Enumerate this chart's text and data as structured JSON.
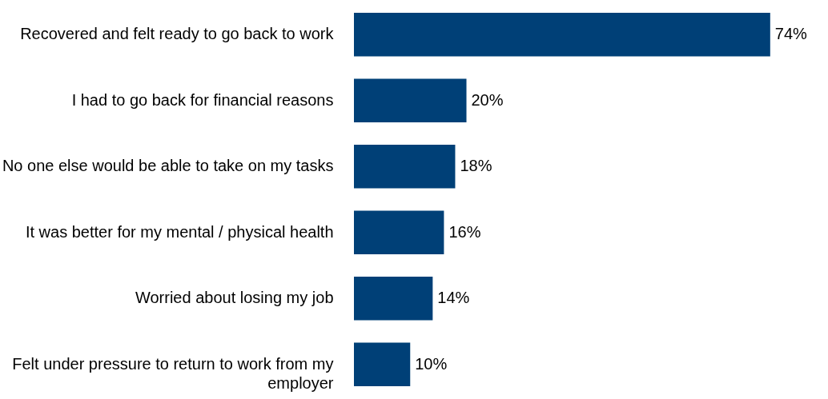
{
  "chart_data": {
    "type": "bar",
    "orientation": "horizontal",
    "categories": [
      "Recovered and felt ready to go back to work",
      "I had to go back for financial reasons",
      "No one else would be able to take on my tasks",
      "It was better for my mental / physical health",
      "Worried about losing my job",
      "Felt under pressure to return to work from my employer"
    ],
    "values": [
      74,
      20,
      18,
      16,
      14,
      10
    ],
    "value_labels": [
      "74%",
      "20%",
      "18%",
      "16%",
      "14%",
      "10%"
    ],
    "color": "#004077",
    "grid": false
  }
}
